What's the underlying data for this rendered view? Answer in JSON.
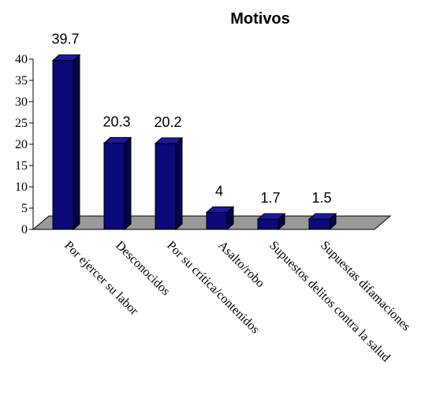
{
  "chart_data": {
    "type": "bar",
    "title": "Motivos",
    "xlabel": "",
    "ylabel": "",
    "categories": [
      "Por ejercer su labor",
      "Desconocidos",
      "Por su crítica/contenidos",
      "Asalto/robo",
      "Supuestos delitos contra la salud",
      "Supuestas difamaciones"
    ],
    "values": [
      39.7,
      20.3,
      20.2,
      4,
      1.7,
      1.5
    ],
    "data_labels": [
      "39.7",
      "20.3",
      "20.2",
      "4",
      "1.7",
      "1.5"
    ],
    "ylim": [
      0,
      40
    ],
    "yticks": [
      0,
      5,
      10,
      15,
      20,
      25,
      30,
      35,
      40
    ],
    "grid": false,
    "legend": "none",
    "colors": {
      "bar_front": "#0a0a7a",
      "bar_side": "#05054a",
      "bar_top": "#1a1aa0",
      "floor": "#999999",
      "outline": "#000000"
    }
  }
}
